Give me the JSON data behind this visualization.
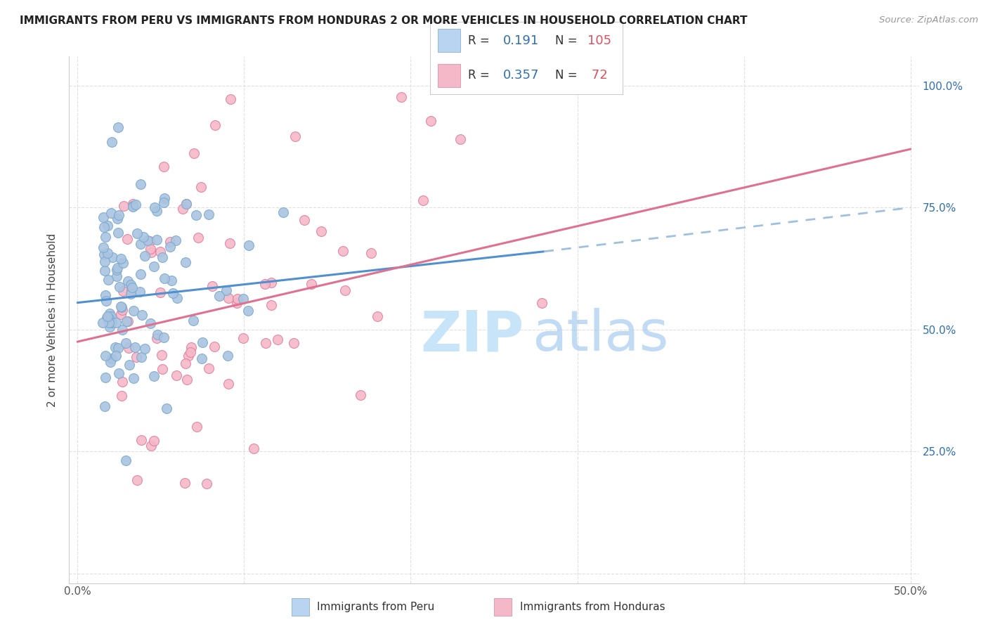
{
  "title": "IMMIGRANTS FROM PERU VS IMMIGRANTS FROM HONDURAS 2 OR MORE VEHICLES IN HOUSEHOLD CORRELATION CHART",
  "source": "Source: ZipAtlas.com",
  "ylabel": "2 or more Vehicles in Household",
  "xlim": [
    -0.005,
    0.505
  ],
  "ylim": [
    -0.02,
    1.06
  ],
  "xtick_positions": [
    0.0,
    0.1,
    0.2,
    0.3,
    0.4,
    0.5
  ],
  "xtick_labels": [
    "0.0%",
    "",
    "",
    "",
    "",
    "50.0%"
  ],
  "ytick_positions": [
    0.0,
    0.25,
    0.5,
    0.75,
    1.0
  ],
  "ytick_labels_right": [
    "",
    "25.0%",
    "50.0%",
    "75.0%",
    "100.0%"
  ],
  "peru_color": "#aac4e0",
  "peru_edge_color": "#7aaad0",
  "honduras_color": "#f5b8c8",
  "honduras_edge_color": "#e080a0",
  "peru_line_color": "#5090d0",
  "peru_line_color_dash": "#a0c0e0",
  "honduras_line_color": "#e07090",
  "legend_peru_fill": "#b8d4f0",
  "legend_honduras_fill": "#f5b8c8",
  "peru_R": 0.191,
  "peru_N": 105,
  "honduras_R": 0.357,
  "honduras_N": 72,
  "watermark_zip_color": "#c8e4f8",
  "watermark_atlas_color": "#a8ccf0",
  "legend_label_color": "#3070b0",
  "legend_N_color": "#e05060",
  "seed": 42,
  "background_color": "#ffffff",
  "grid_color": "#e0e0e0",
  "peru_line_x0": 0.0,
  "peru_line_y0": 0.555,
  "peru_line_x1": 0.28,
  "peru_line_y1": 0.66,
  "peru_line_dash_x1": 0.5,
  "peru_line_dash_y1": 0.75,
  "honduras_line_x0": 0.0,
  "honduras_line_y0": 0.475,
  "honduras_line_x1": 0.5,
  "honduras_line_y1": 0.87
}
